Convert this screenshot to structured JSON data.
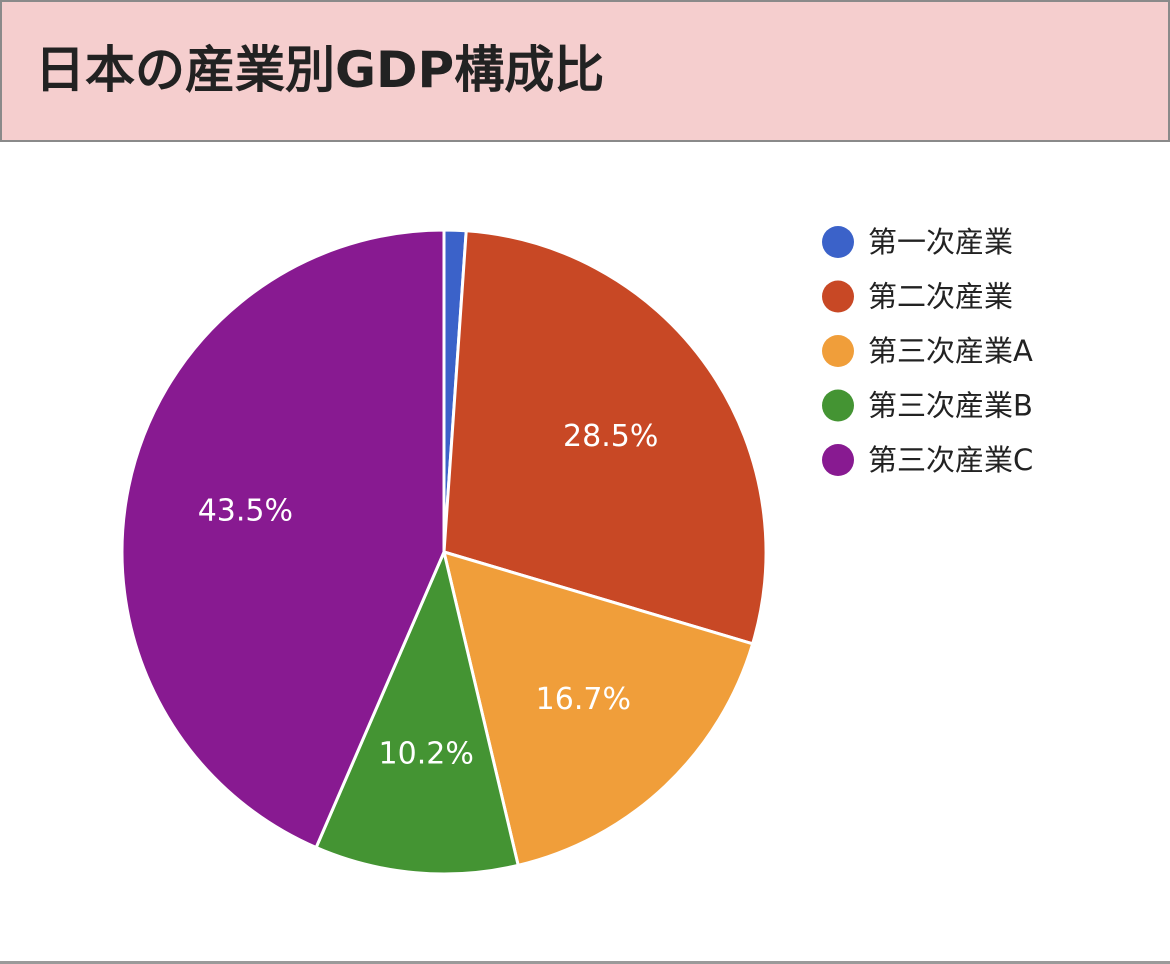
{
  "header": {
    "title": "日本の産業別GDP構成比"
  },
  "chart_data": {
    "type": "pie",
    "title": "日本の産業別GDP構成比",
    "legend_position": "right",
    "slices": [
      {
        "label": "第一次産業",
        "value": 1.1,
        "color": "#3b62c9",
        "data_label": ""
      },
      {
        "label": "第二次産業",
        "value": 28.5,
        "color": "#c84825",
        "data_label": "28.5%"
      },
      {
        "label": "第三次産業A",
        "value": 16.7,
        "color": "#f09e3a",
        "data_label": "16.7%"
      },
      {
        "label": "第三次産業B",
        "value": 10.2,
        "color": "#449433",
        "data_label": "10.2%"
      },
      {
        "label": "第三次産業C",
        "value": 43.5,
        "color": "#881a91",
        "data_label": "43.5%"
      }
    ]
  }
}
